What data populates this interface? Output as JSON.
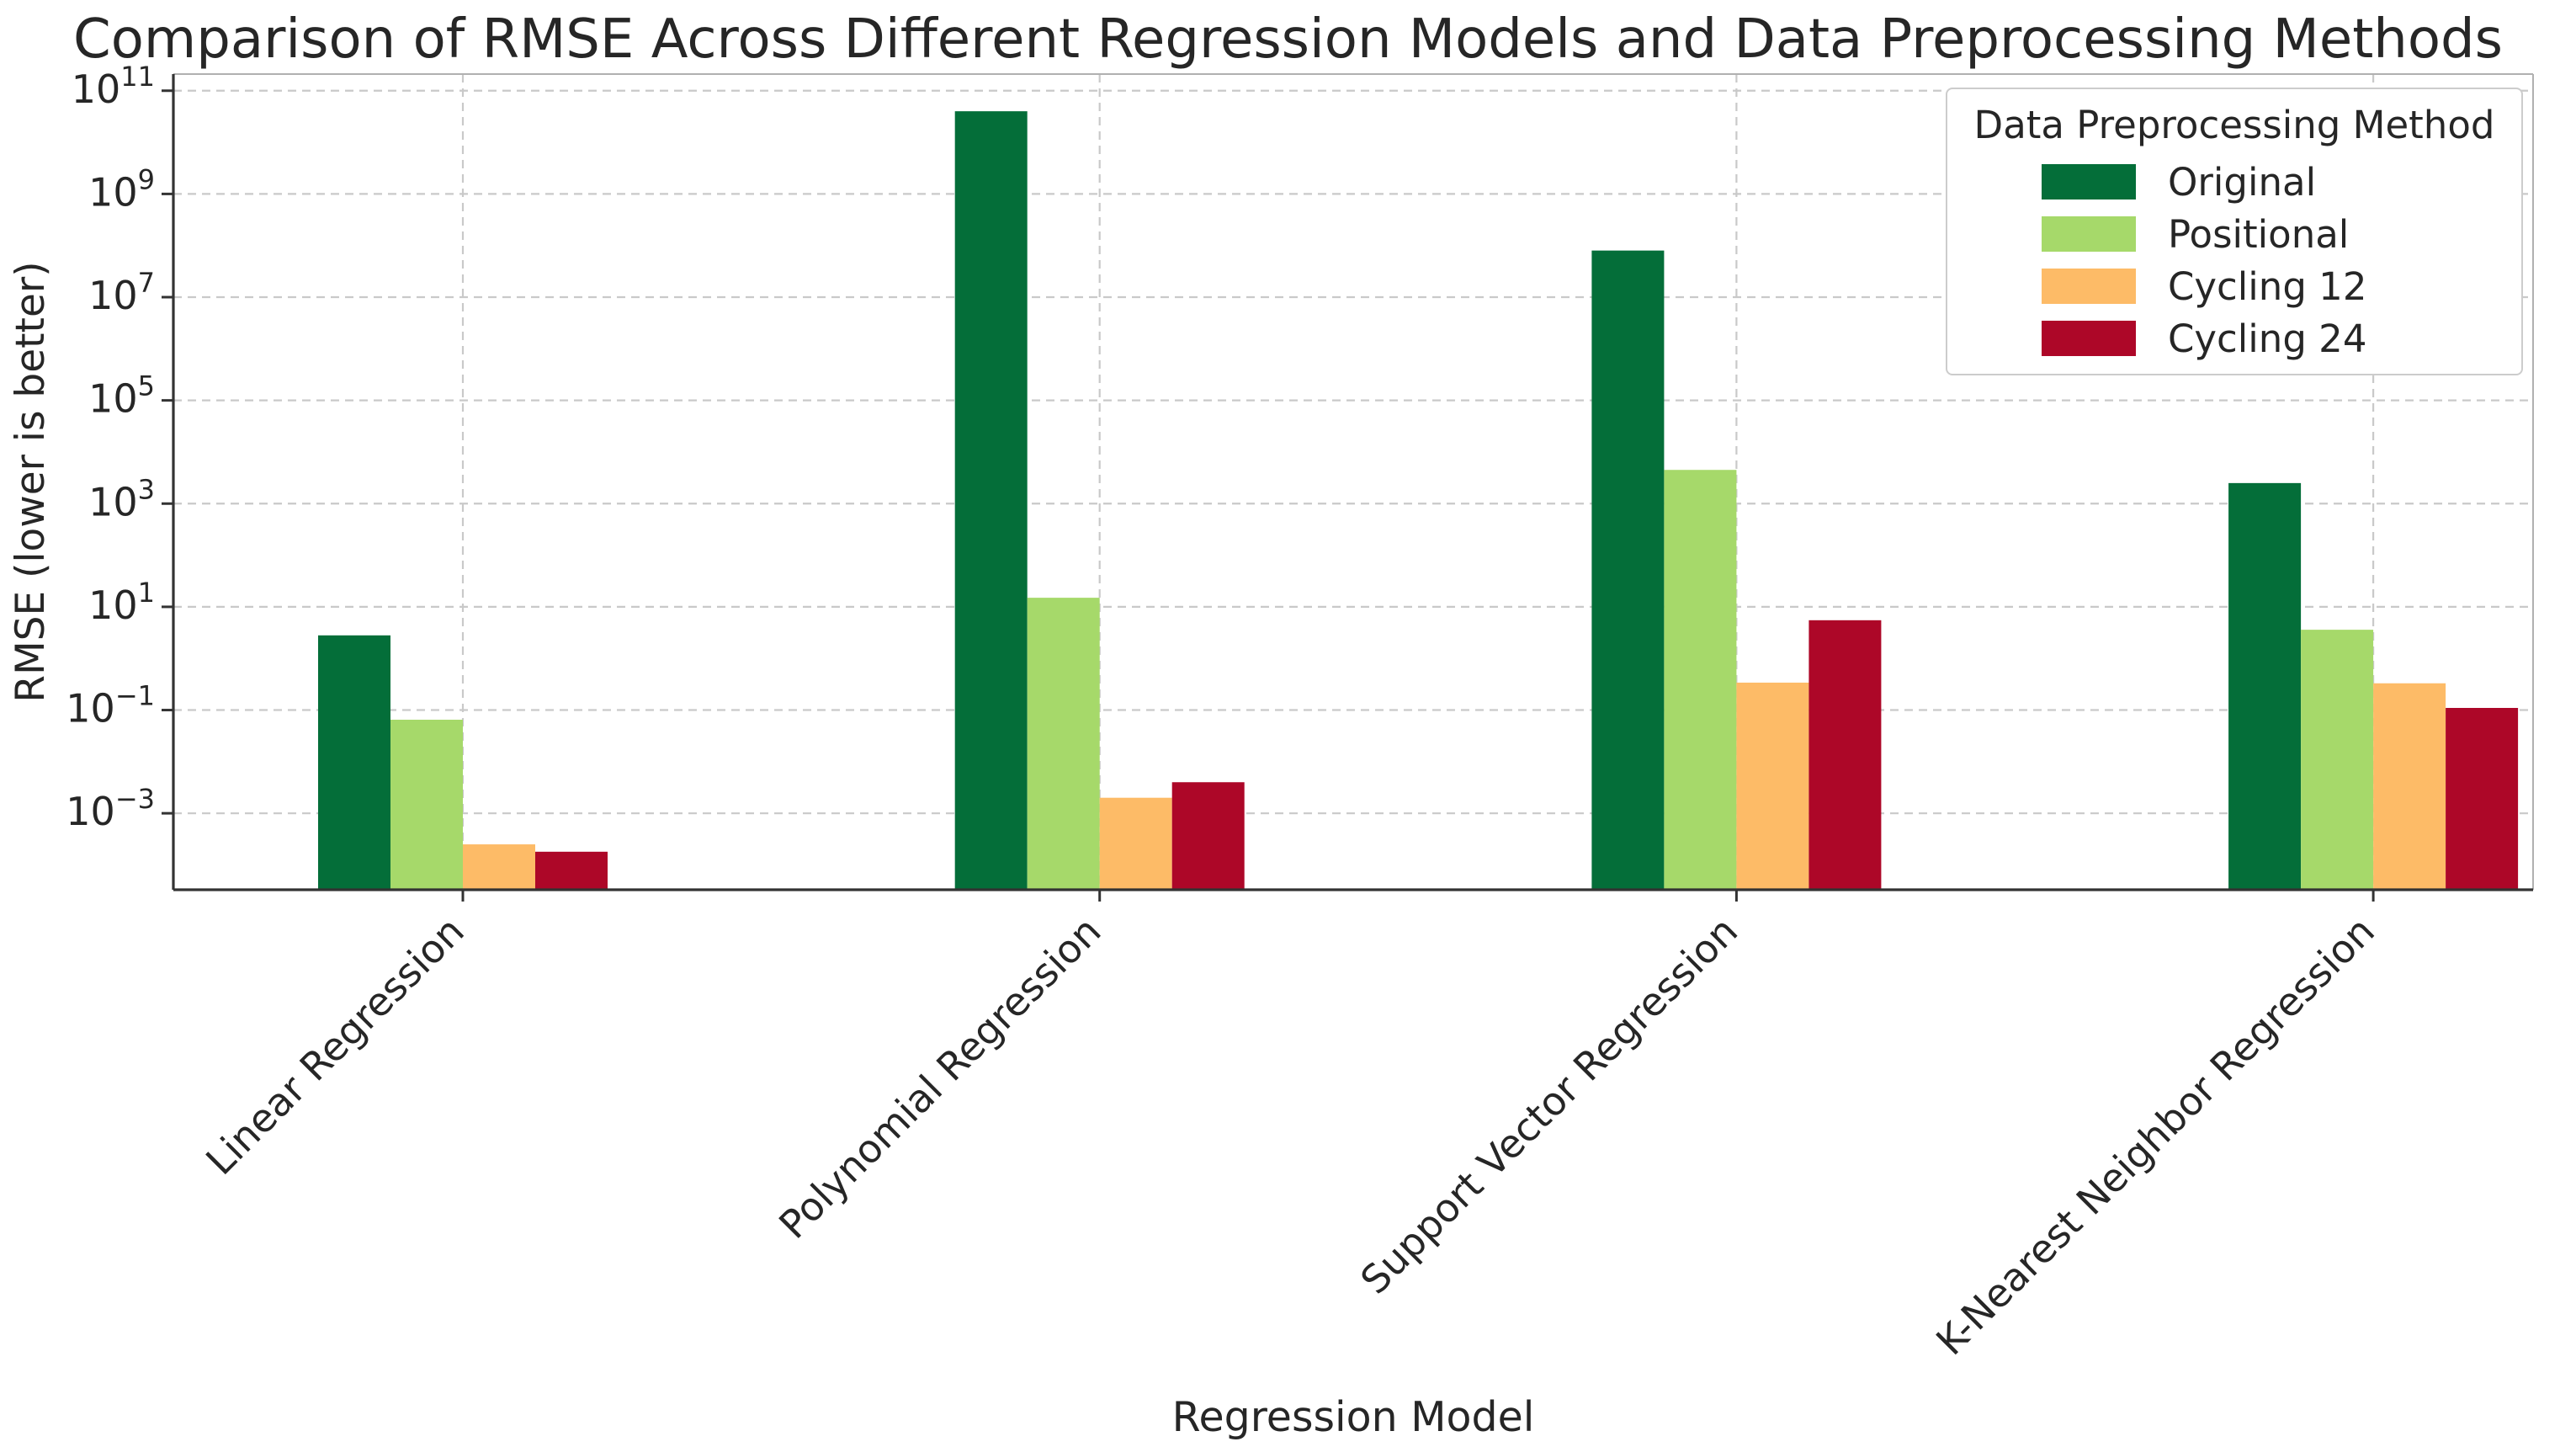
{
  "chart_data": {
    "type": "bar",
    "variant": "grouped",
    "title": "Comparison of RMSE Across Different Regression Models and Data Preprocessing Methods",
    "xlabel": "Regression Model",
    "ylabel": "RMSE (lower is better)",
    "legend_title": "Data Preprocessing Method",
    "legend_position": "upper right",
    "y_scale": "log",
    "ylim": [
      3.3e-05,
      210000000000.0
    ],
    "y_tick_exponents": [
      11,
      9,
      7,
      5,
      3,
      1,
      -1,
      -3
    ],
    "grid": "dashed horizontal and vertical decade/category gridlines",
    "categories": [
      "Linear Regression",
      "Polynomial Regression",
      "Support Vector Regression",
      "K-Nearest Neighbor Regression"
    ],
    "series": [
      {
        "name": "Original",
        "color": "#046e39",
        "values": [
          2.8,
          40000000000,
          80000000,
          2500
        ]
      },
      {
        "name": "Positional",
        "color": "#a6d96a",
        "values": [
          0.065,
          15,
          4500,
          3.6
        ]
      },
      {
        "name": "Cycling 12",
        "color": "#fdbb67",
        "values": [
          0.00025,
          0.002,
          0.34,
          0.33
        ]
      },
      {
        "name": "Cycling 24",
        "color": "#ad0728",
        "values": [
          0.00018,
          0.004,
          5.5,
          0.11
        ]
      }
    ]
  },
  "colors": {
    "text": "#262626",
    "spine": "#333333",
    "gridline": "#c9c9c9",
    "background": "#ffffff"
  }
}
